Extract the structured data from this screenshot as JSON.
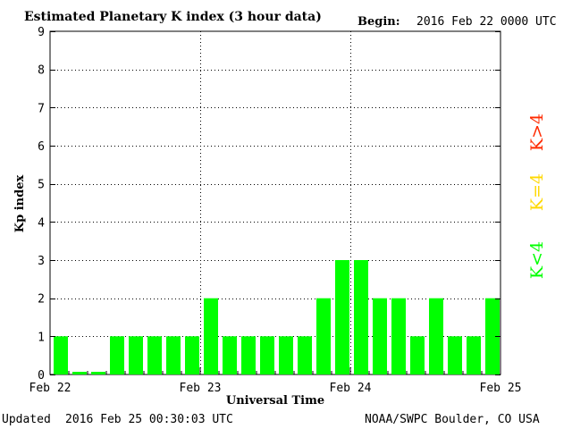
{
  "header": {
    "title": "Estimated Planetary K index (3 hour data)",
    "begin_label": "Begin:",
    "begin_value": "2016 Feb 22 0000 UTC"
  },
  "footer": {
    "updated_label": "Updated",
    "updated_value": "2016 Feb 25 00:30:03 UTC",
    "source": "NOAA/SWPC Boulder, CO USA"
  },
  "legend": {
    "items": [
      {
        "label": "K>4",
        "color": "#ff2a00"
      },
      {
        "label": "K=4",
        "color": "#ffd800"
      },
      {
        "label": "K<4",
        "color": "#00ff00"
      }
    ]
  },
  "colors": {
    "bar": "#00ff00",
    "axis": "#000000",
    "grid": "#000000"
  },
  "chart_data": {
    "type": "bar",
    "title": "Estimated Planetary K index (3 hour data)",
    "xlabel": "Universal Time",
    "ylabel": "Kp index",
    "ylim": [
      0,
      9
    ],
    "yticks": [
      "0",
      "1",
      "2",
      "3",
      "4",
      "5",
      "6",
      "7",
      "8",
      "9"
    ],
    "xticks": [
      "Feb 22",
      "Feb 23",
      "Feb 24",
      "Feb 25"
    ],
    "grid": "dotted",
    "interval_hours": 3,
    "values": [
      1,
      0.07,
      0.07,
      1,
      1,
      1,
      1,
      1,
      2,
      1,
      1,
      1,
      1,
      1,
      2,
      3,
      3,
      2,
      2,
      1,
      2,
      1,
      1,
      2
    ]
  }
}
